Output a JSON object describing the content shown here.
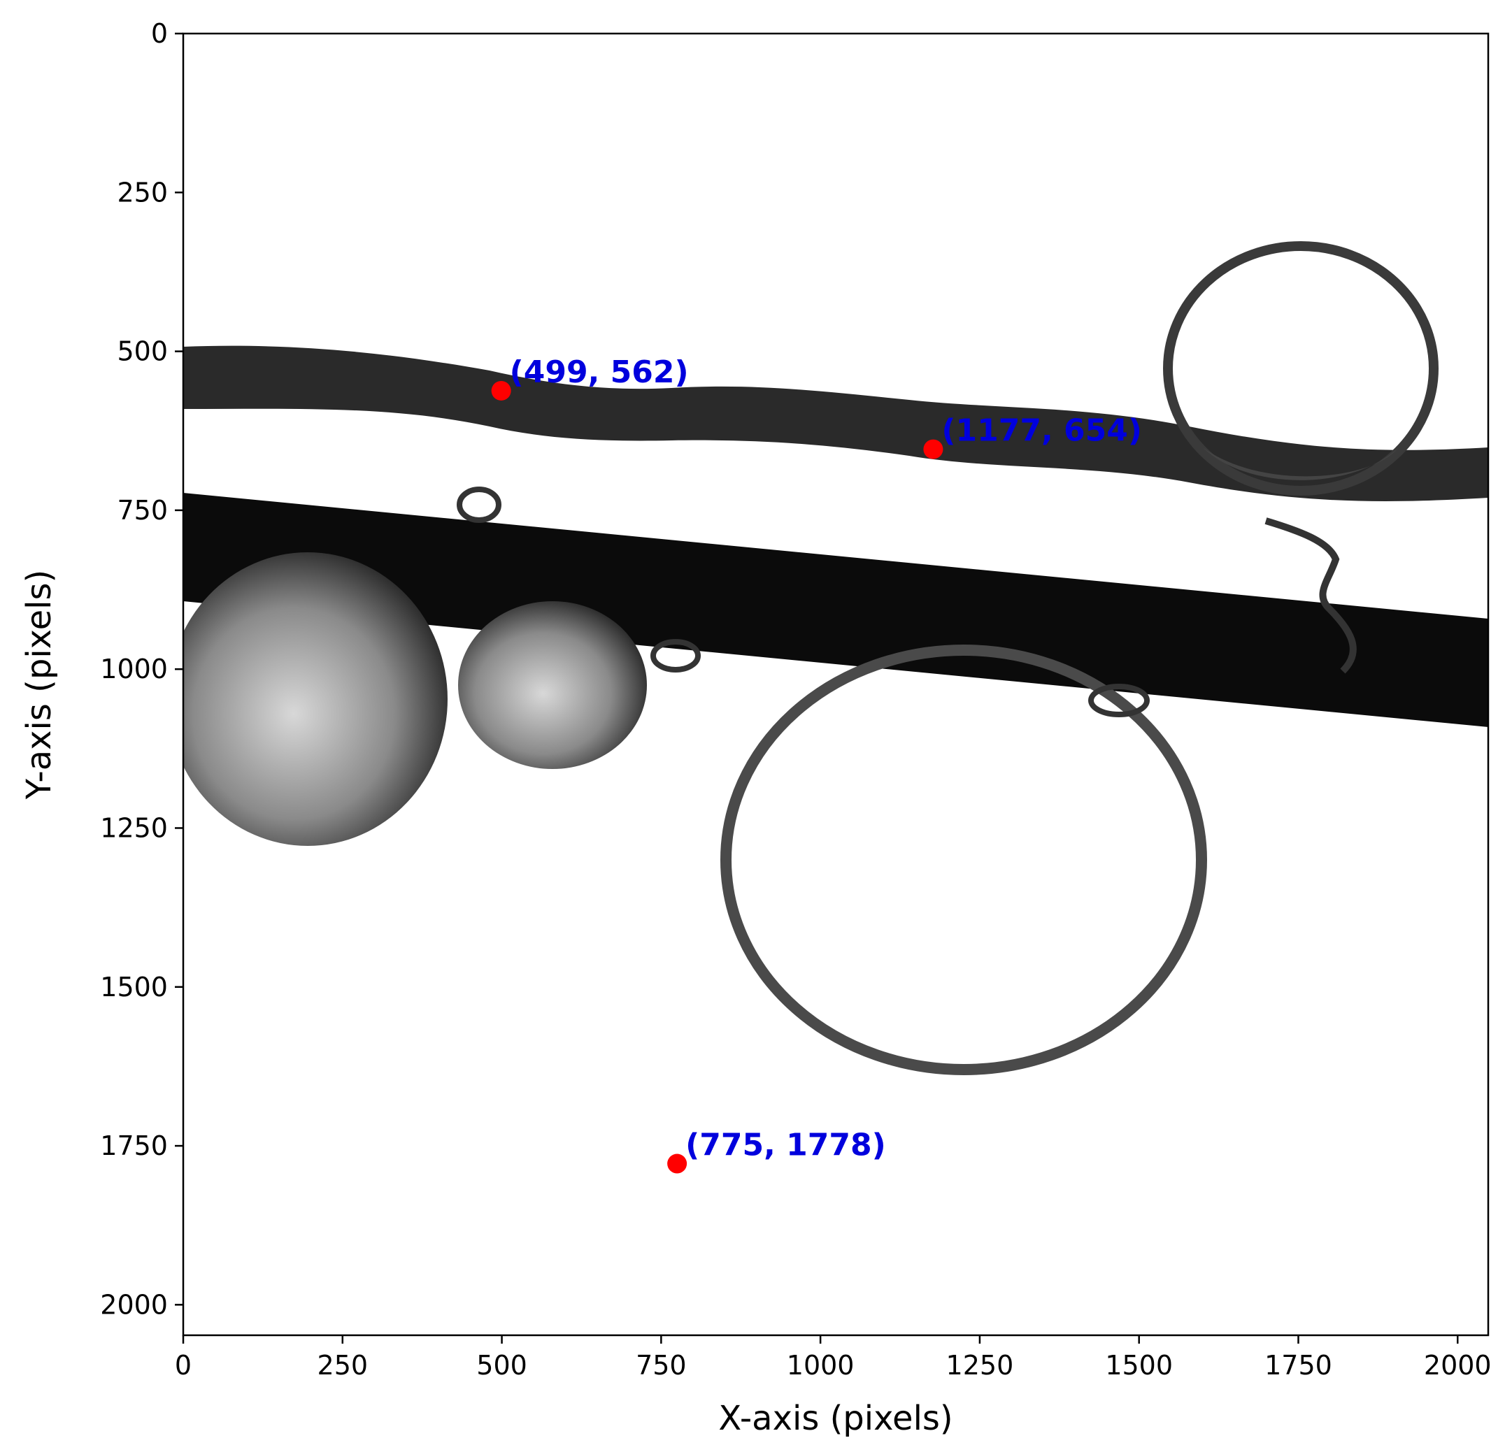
{
  "chart_data": {
    "type": "scatter",
    "title": "",
    "xlabel": "X-axis (pixels)",
    "ylabel": "Y-axis (pixels)",
    "xlim": [
      0,
      2048
    ],
    "ylim": [
      2048,
      0
    ],
    "y_inverted": true,
    "grid": false,
    "xticks": [
      0,
      250,
      500,
      750,
      1000,
      1250,
      1500,
      1750,
      2000
    ],
    "yticks": [
      0,
      250,
      500,
      750,
      1000,
      1250,
      1500,
      1750,
      2000
    ],
    "background": "grayscale photograph of fibers with liquid droplets",
    "marker_color": "#ff0000",
    "label_color": "#0000dd",
    "points": [
      {
        "x": 499,
        "y": 562,
        "label": "(499, 562)"
      },
      {
        "x": 1177,
        "y": 654,
        "label": "(1177, 654)"
      },
      {
        "x": 775,
        "y": 1778,
        "label": "(775, 1778)"
      }
    ]
  }
}
